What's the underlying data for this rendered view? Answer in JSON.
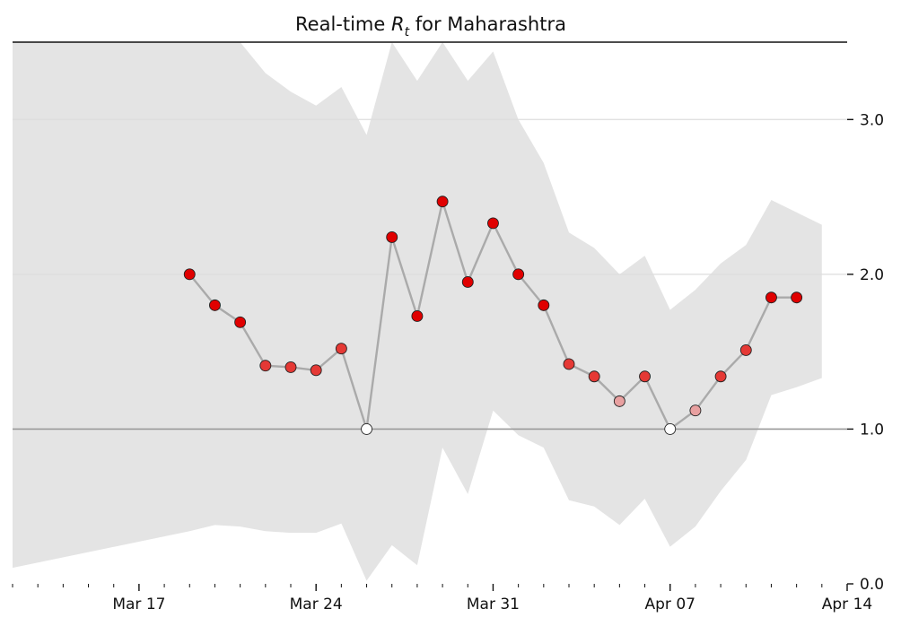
{
  "chart_data": {
    "type": "line",
    "title_prefix": "Real-time ",
    "title_var": "R",
    "title_sub": "t",
    "title_suffix": " for Maharashtra",
    "xlabel": "",
    "ylabel": "",
    "x_start": "2020-03-12",
    "x_end": "2020-04-14",
    "ylim": [
      0,
      3.5
    ],
    "y_ticks": [
      0.0,
      1.0,
      2.0,
      3.0
    ],
    "y_tick_labels": [
      "0.0",
      "1.0",
      "2.0",
      "3.0"
    ],
    "x_ticks": [
      "2020-03-17",
      "2020-03-24",
      "2020-03-31",
      "2020-04-07",
      "2020-04-14"
    ],
    "x_tick_labels": [
      "Mar 17",
      "Mar 24",
      "Mar 31",
      "Apr 07",
      "Apr 14"
    ],
    "reference_line": 1.0,
    "grid": "horizontal",
    "colors": {
      "band": "#e4e4e4",
      "line": "#aaaaaa",
      "grid": "#dddddd",
      "reference": "#999999",
      "point_high": "#e00000",
      "point_mid": "#e53935",
      "point_low": "#e8a0a0",
      "point_zero": "#ffffff",
      "point_edge": "#222222"
    },
    "series": [
      {
        "values": [
          {
            "x": "2020-03-19",
            "y": 2.0
          },
          {
            "x": "2020-03-20",
            "y": 1.8
          },
          {
            "x": "2020-03-21",
            "y": 1.69
          },
          {
            "x": "2020-03-22",
            "y": 1.41
          },
          {
            "x": "2020-03-23",
            "y": 1.4
          },
          {
            "x": "2020-03-24",
            "y": 1.38
          },
          {
            "x": "2020-03-25",
            "y": 1.52
          },
          {
            "x": "2020-03-26",
            "y": 1.0
          },
          {
            "x": "2020-03-27",
            "y": 2.24
          },
          {
            "x": "2020-03-28",
            "y": 1.73
          },
          {
            "x": "2020-03-29",
            "y": 2.47
          },
          {
            "x": "2020-03-30",
            "y": 1.95
          },
          {
            "x": "2020-03-31",
            "y": 2.33
          },
          {
            "x": "2020-04-01",
            "y": 2.0
          },
          {
            "x": "2020-04-02",
            "y": 1.8
          },
          {
            "x": "2020-04-03",
            "y": 1.42
          },
          {
            "x": "2020-04-04",
            "y": 1.34
          },
          {
            "x": "2020-04-05",
            "y": 1.18
          },
          {
            "x": "2020-04-06",
            "y": 1.34
          },
          {
            "x": "2020-04-07",
            "y": 1.0
          },
          {
            "x": "2020-04-08",
            "y": 1.12
          },
          {
            "x": "2020-04-09",
            "y": 1.34
          },
          {
            "x": "2020-04-10",
            "y": 1.51
          },
          {
            "x": "2020-04-11",
            "y": 1.85
          },
          {
            "x": "2020-04-12",
            "y": 1.85
          }
        ]
      }
    ],
    "interval": [
      {
        "x": "2020-03-11",
        "low": 0.07,
        "high": 3.5
      },
      {
        "x": "2020-03-19",
        "low": 0.34,
        "high": 3.5
      },
      {
        "x": "2020-03-20",
        "low": 0.38,
        "high": 3.5
      },
      {
        "x": "2020-03-21",
        "low": 0.37,
        "high": 3.5
      },
      {
        "x": "2020-03-22",
        "low": 0.34,
        "high": 3.3
      },
      {
        "x": "2020-03-23",
        "low": 0.33,
        "high": 3.18
      },
      {
        "x": "2020-03-24",
        "low": 0.33,
        "high": 3.09
      },
      {
        "x": "2020-03-25",
        "low": 0.39,
        "high": 3.21
      },
      {
        "x": "2020-03-26",
        "low": 0.02,
        "high": 2.9
      },
      {
        "x": "2020-03-27",
        "low": 0.25,
        "high": 3.5
      },
      {
        "x": "2020-03-28",
        "low": 0.12,
        "high": 3.25
      },
      {
        "x": "2020-03-29",
        "low": 0.88,
        "high": 3.5
      },
      {
        "x": "2020-03-30",
        "low": 0.58,
        "high": 3.25
      },
      {
        "x": "2020-03-31",
        "low": 1.12,
        "high": 3.44
      },
      {
        "x": "2020-04-01",
        "low": 0.96,
        "high": 3.0
      },
      {
        "x": "2020-04-02",
        "low": 0.88,
        "high": 2.72
      },
      {
        "x": "2020-04-03",
        "low": 0.54,
        "high": 2.27
      },
      {
        "x": "2020-04-04",
        "low": 0.5,
        "high": 2.17
      },
      {
        "x": "2020-04-05",
        "low": 0.38,
        "high": 2.0
      },
      {
        "x": "2020-04-06",
        "low": 0.55,
        "high": 2.12
      },
      {
        "x": "2020-04-07",
        "low": 0.24,
        "high": 1.77
      },
      {
        "x": "2020-04-08",
        "low": 0.37,
        "high": 1.9
      },
      {
        "x": "2020-04-09",
        "low": 0.6,
        "high": 2.07
      },
      {
        "x": "2020-04-10",
        "low": 0.8,
        "high": 2.19
      },
      {
        "x": "2020-04-11",
        "low": 1.22,
        "high": 2.48
      },
      {
        "x": "2020-04-12",
        "low": 1.27,
        "high": 2.4
      },
      {
        "x": "2020-04-13",
        "low": 1.33,
        "high": 2.32
      }
    ]
  }
}
